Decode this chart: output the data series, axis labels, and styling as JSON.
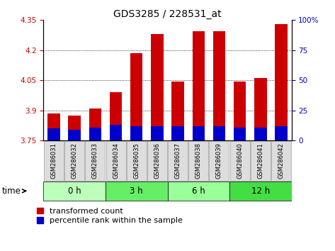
{
  "title": "GDS3285 / 228531_at",
  "samples": [
    "GSM286031",
    "GSM286032",
    "GSM286033",
    "GSM286034",
    "GSM286035",
    "GSM286036",
    "GSM286037",
    "GSM286038",
    "GSM286039",
    "GSM286040",
    "GSM286041",
    "GSM286042"
  ],
  "transformed_count": [
    3.885,
    3.875,
    3.91,
    3.99,
    4.185,
    4.28,
    4.045,
    4.295,
    4.295,
    4.045,
    4.06,
    4.33
  ],
  "percentile_values": [
    10,
    9,
    11,
    13,
    12,
    12,
    12,
    12,
    12,
    11,
    11,
    12
  ],
  "base_value": 3.75,
  "ylim_left": [
    3.75,
    4.35
  ],
  "ylim_right": [
    0,
    100
  ],
  "yticks_left": [
    3.75,
    3.9,
    4.05,
    4.2,
    4.35
  ],
  "yticks_right": [
    0,
    25,
    50,
    75,
    100
  ],
  "ytick_labels_left": [
    "3.75",
    "3.9",
    "4.05",
    "4.2",
    "4.35"
  ],
  "ytick_labels_right": [
    "0",
    "25",
    "50",
    "75",
    "100%"
  ],
  "bar_color": "#cc0000",
  "percentile_color": "#0000cc",
  "bar_width": 0.6,
  "group_info": [
    {
      "start": 0,
      "end": 2,
      "label": "0 h",
      "color": "#bbffbb"
    },
    {
      "start": 3,
      "end": 5,
      "label": "3 h",
      "color": "#66ee66"
    },
    {
      "start": 6,
      "end": 8,
      "label": "6 h",
      "color": "#99ff99"
    },
    {
      "start": 9,
      "end": 11,
      "label": "12 h",
      "color": "#44dd44"
    }
  ],
  "title_fontsize": 10,
  "tick_fontsize": 7.5,
  "sample_fontsize": 6,
  "legend_fontsize": 8,
  "left_tick_color": "#cc0000",
  "right_tick_color": "#0000cc"
}
